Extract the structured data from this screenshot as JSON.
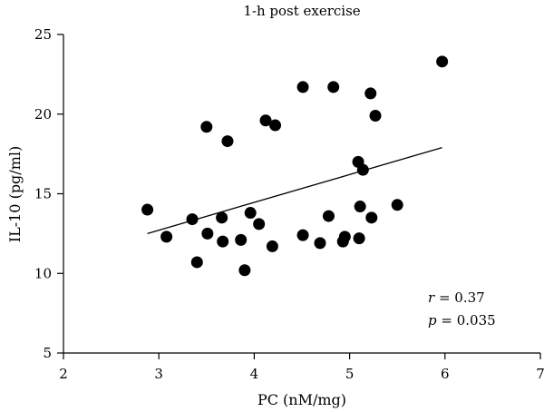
{
  "chart_data": {
    "type": "scatter",
    "title": "1-h post exercise",
    "xlabel": "PC (nM/mg)",
    "ylabel": "IL-10 (pg/ml)",
    "xlim": [
      2,
      7
    ],
    "ylim": [
      5,
      25
    ],
    "xticks": [
      "2",
      "3",
      "4",
      "5",
      "6",
      "7"
    ],
    "yticks": [
      "5",
      "10",
      "15",
      "20",
      "25"
    ],
    "points": [
      {
        "x": 2.88,
        "y": 14.0
      },
      {
        "x": 3.08,
        "y": 12.3
      },
      {
        "x": 3.35,
        "y": 13.4
      },
      {
        "x": 3.4,
        "y": 10.7
      },
      {
        "x": 3.5,
        "y": 19.2
      },
      {
        "x": 3.51,
        "y": 12.5
      },
      {
        "x": 3.66,
        "y": 13.5
      },
      {
        "x": 3.67,
        "y": 12.0
      },
      {
        "x": 3.72,
        "y": 18.3
      },
      {
        "x": 3.86,
        "y": 12.1
      },
      {
        "x": 3.9,
        "y": 10.2
      },
      {
        "x": 3.96,
        "y": 13.8
      },
      {
        "x": 4.05,
        "y": 13.1
      },
      {
        "x": 4.12,
        "y": 19.6
      },
      {
        "x": 4.19,
        "y": 11.7
      },
      {
        "x": 4.22,
        "y": 19.3
      },
      {
        "x": 4.51,
        "y": 21.7
      },
      {
        "x": 4.51,
        "y": 12.4
      },
      {
        "x": 4.69,
        "y": 11.9
      },
      {
        "x": 4.78,
        "y": 13.6
      },
      {
        "x": 4.83,
        "y": 21.7
      },
      {
        "x": 4.93,
        "y": 12.0
      },
      {
        "x": 4.95,
        "y": 12.3
      },
      {
        "x": 5.09,
        "y": 17.0
      },
      {
        "x": 5.1,
        "y": 12.2
      },
      {
        "x": 5.11,
        "y": 14.2
      },
      {
        "x": 5.14,
        "y": 16.5
      },
      {
        "x": 5.22,
        "y": 21.3
      },
      {
        "x": 5.23,
        "y": 13.5
      },
      {
        "x": 5.27,
        "y": 19.9
      },
      {
        "x": 5.5,
        "y": 14.3
      },
      {
        "x": 5.97,
        "y": 23.3
      }
    ],
    "fit_line": {
      "x": [
        2.88,
        5.97
      ],
      "y": [
        12.5,
        17.9
      ]
    },
    "annotations": {
      "r_var": "r",
      "r_value": " = 0.37",
      "p_var": "p",
      "p_value": " = 0.035"
    },
    "grid": false,
    "legend": "none"
  }
}
